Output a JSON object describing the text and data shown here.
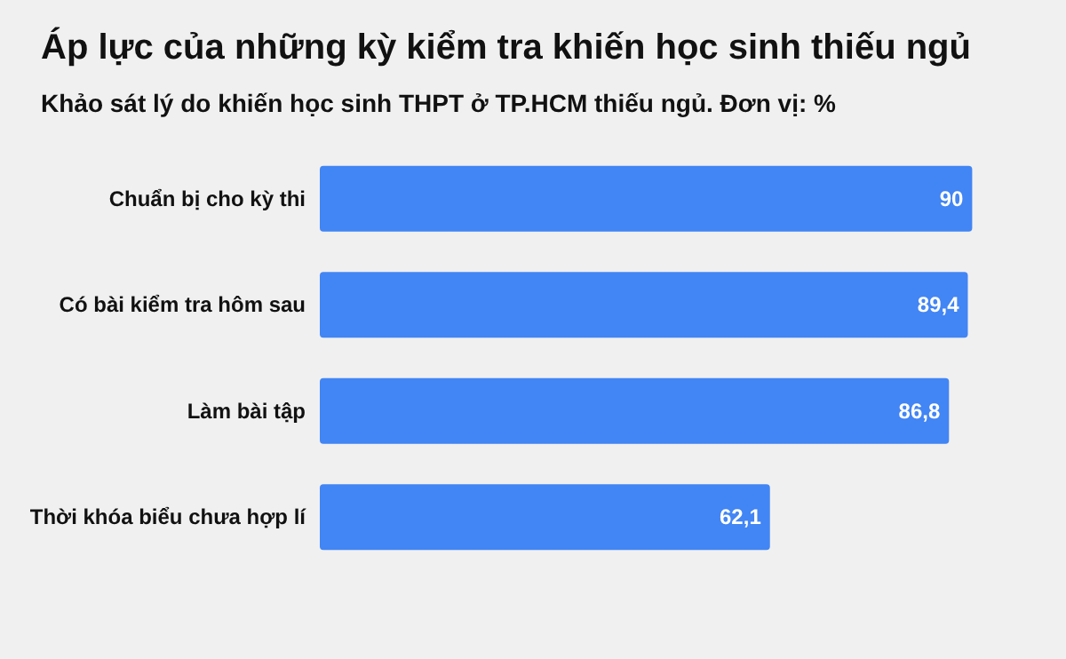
{
  "chart_data": {
    "type": "bar",
    "orientation": "horizontal",
    "title": "Áp lực của những kỳ kiểm tra khiến học sinh thiếu ngủ",
    "subtitle": "Khảo sát lý do khiến học sinh THPT ở TP.HCM thiếu ngủ. Đơn vị: %",
    "categories": [
      "Chuẩn bị cho kỳ thi",
      "Có bài kiểm tra hôm sau",
      "Làm bài tập",
      "Thời khóa biểu chưa hợp lí"
    ],
    "values": [
      90,
      89.4,
      86.8,
      62.1
    ],
    "value_labels": [
      "90",
      "89,4",
      "86,8",
      "62,1"
    ],
    "color": "#4285f4"
  }
}
